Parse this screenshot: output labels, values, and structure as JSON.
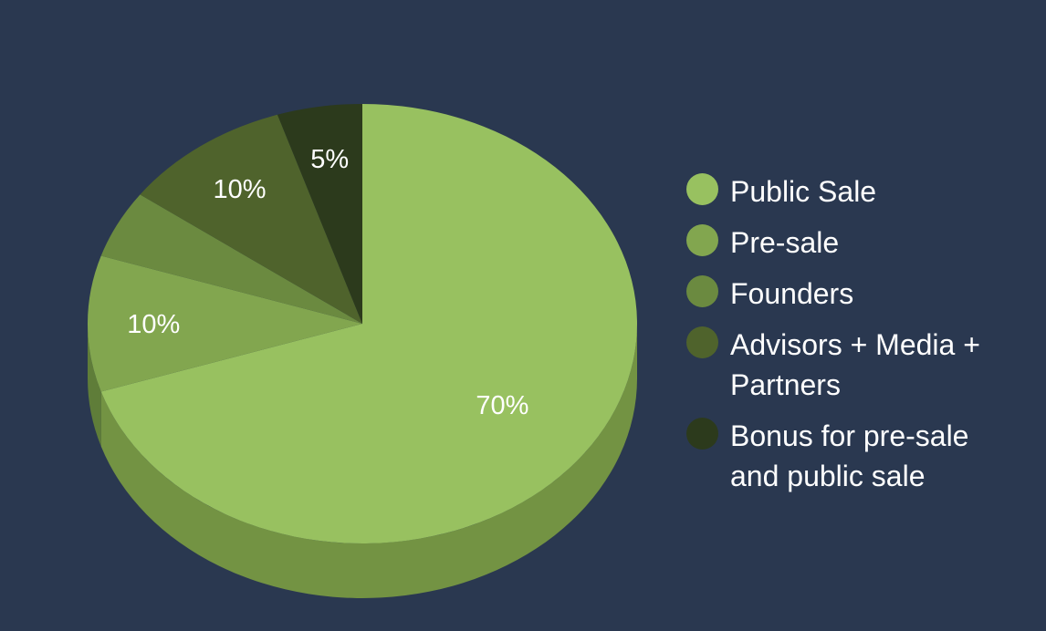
{
  "chart_data": {
    "type": "pie",
    "title": "",
    "slices": [
      {
        "name": "Public Sale",
        "value": 70,
        "label": "70%",
        "color": "#98c160",
        "side_color": "#739343"
      },
      {
        "name": "Pre-sale",
        "value": 10,
        "label": "10%",
        "color": "#82a64f",
        "side_color": "#5f7d39"
      },
      {
        "name": "Founders",
        "value": 5,
        "label": "",
        "color": "#6b8a40",
        "side_color": "#4f6a2f"
      },
      {
        "name": "Advisors + Media + Partners",
        "value": 10,
        "label": "10%",
        "color": "#4f632c",
        "side_color": "#3a4a20"
      },
      {
        "name": "Bonus for pre-sale and public sale",
        "value": 5,
        "label": "5%",
        "color": "#2c3a1c",
        "side_color": "#1f2914"
      }
    ],
    "legend_position": "right"
  },
  "colors": {
    "background": "#2a3850",
    "text": "#ffffff"
  }
}
